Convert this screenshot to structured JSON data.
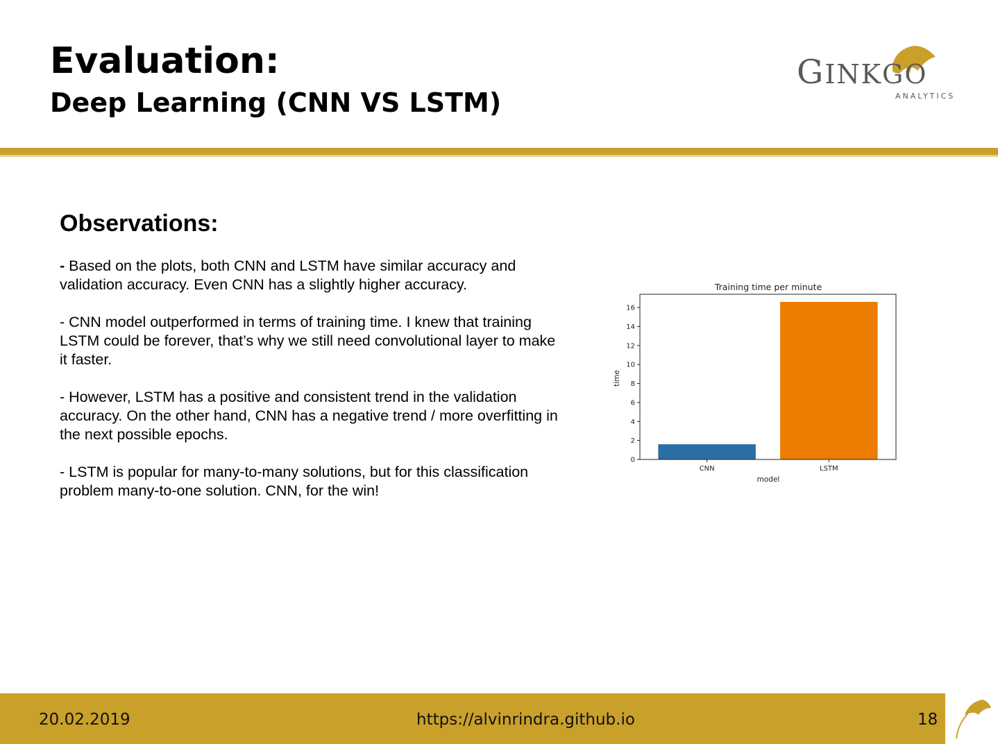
{
  "slide": {
    "title": "Evaluation:",
    "subtitle": "Deep Learning (CNN VS LSTM)"
  },
  "logo": {
    "word_big_g": "G",
    "word_rest": "INK",
    "word_tail": "GO",
    "sub": "ANALYTICS",
    "colors": {
      "text": "#5a5a5a",
      "leaf": "#c9a02a"
    }
  },
  "observations": {
    "heading": "Observations:",
    "items": [
      {
        "dash": "-",
        "text": " Based on the plots, both CNN and LSTM have similar accuracy and validation accuracy. Even CNN has a slightly higher accuracy."
      },
      {
        "dash": "-",
        "text": " CNN model outperformed in terms of training time. I knew that training LSTM could be forever, that’s why we still need convolutional layer to make it faster."
      },
      {
        "dash": "-",
        "text": " However, LSTM has a positive and consistent trend in the validation accuracy. On the other hand, CNN has a negative trend / more overfitting in the next possible epochs."
      },
      {
        "dash": "-",
        "text": " LSTM is popular for many-to-many solutions, but for this classification problem many-to-one solution. CNN, for the win!"
      }
    ]
  },
  "chart_data": {
    "type": "bar",
    "title": "Training time per minute",
    "xlabel": "model",
    "ylabel": "time",
    "categories": [
      "CNN",
      "LSTM"
    ],
    "values": [
      1.6,
      16.6
    ],
    "ylim": [
      0,
      17.4
    ],
    "yticks": [
      0,
      2,
      4,
      6,
      8,
      10,
      12,
      14,
      16
    ],
    "bar_colors": [
      "#2e6ea6",
      "#ec7d00"
    ],
    "grid": false,
    "legend": "none"
  },
  "footer": {
    "date": "20.02.2019",
    "url": "https://alvinrindra.github.io",
    "page": "18",
    "color": "#c9a02a"
  }
}
